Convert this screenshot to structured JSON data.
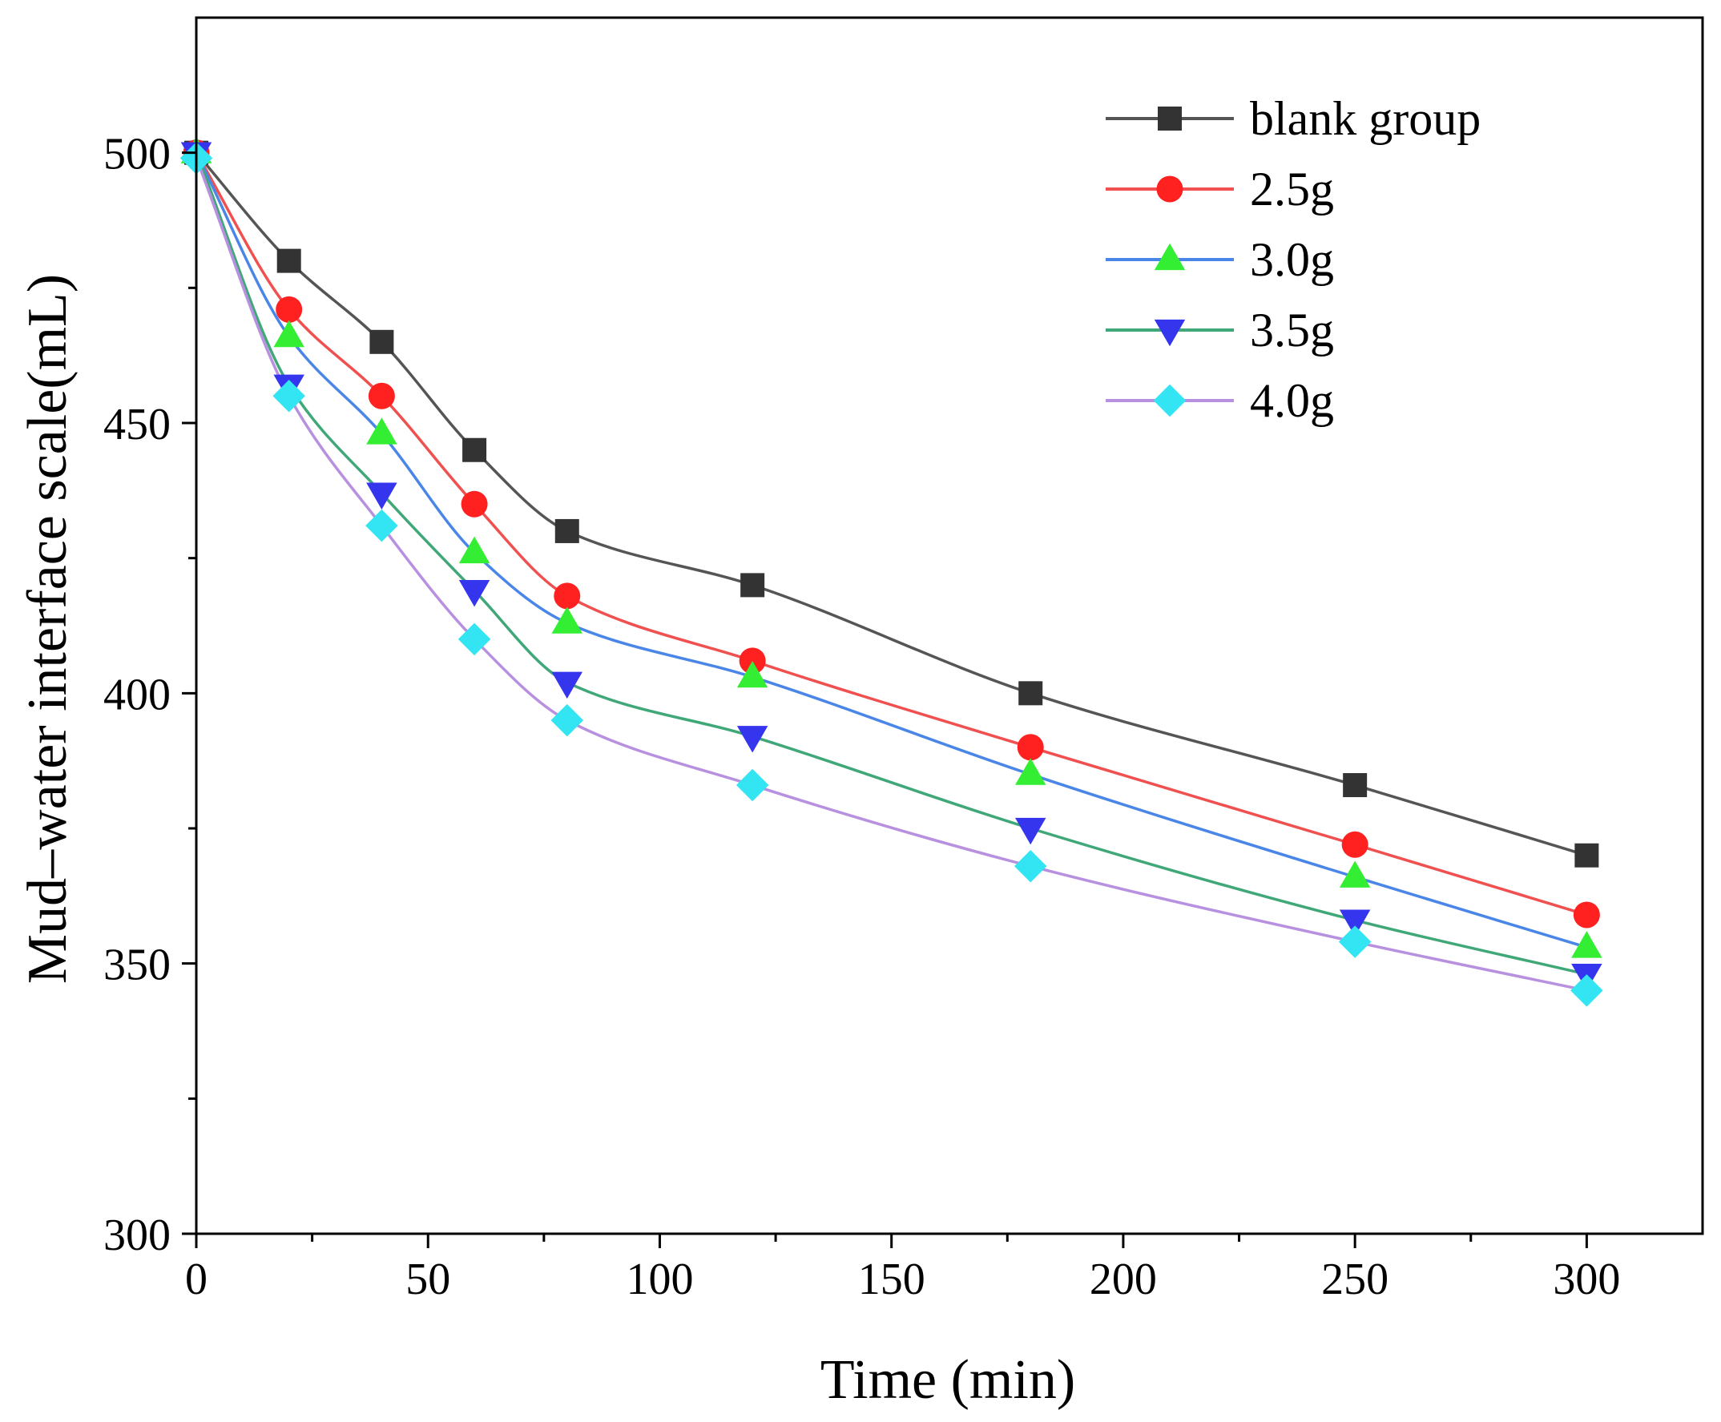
{
  "chart_data": {
    "type": "line",
    "title": "",
    "xlabel": "Time (min)",
    "ylabel": "Mud–water interface scale(mL)",
    "xlim": [
      0,
      325
    ],
    "ylim": [
      300,
      525
    ],
    "x_ticks": [
      0,
      50,
      100,
      150,
      200,
      250,
      300
    ],
    "x_minor_ticks": [
      25,
      75,
      125,
      175,
      225,
      275
    ],
    "y_ticks": [
      300,
      350,
      400,
      450,
      500
    ],
    "y_minor_ticks": [
      325,
      375,
      425,
      475
    ],
    "grid": false,
    "legend_position": "top-right",
    "x": [
      0,
      20,
      40,
      60,
      80,
      120,
      180,
      250,
      300
    ],
    "series": [
      {
        "name": "blank group",
        "color": "#555555",
        "marker_color": "#333333",
        "marker": "square",
        "values": [
          500,
          480,
          465,
          445,
          430,
          420,
          400,
          383,
          370
        ]
      },
      {
        "name": "2.5g",
        "color": "#f05050",
        "marker_color": "#ff2020",
        "marker": "circle",
        "values": [
          500,
          471,
          455,
          435,
          418,
          406,
          390,
          372,
          359
        ]
      },
      {
        "name": "3.0g",
        "color": "#4a86e8",
        "marker_color": "#33ee33",
        "marker": "triangle-up",
        "values": [
          500,
          466,
          448,
          426,
          413,
          403,
          385,
          366,
          353
        ]
      },
      {
        "name": "3.5g",
        "color": "#40a878",
        "marker_color": "#3535ee",
        "marker": "triangle-down",
        "values": [
          500,
          457,
          437,
          419,
          402,
          392,
          375,
          358,
          348
        ]
      },
      {
        "name": "4.0g",
        "color": "#b890e0",
        "marker_color": "#33e5f2",
        "marker": "diamond",
        "values": [
          499,
          455,
          431,
          410,
          395,
          383,
          368,
          354,
          345
        ]
      }
    ]
  }
}
